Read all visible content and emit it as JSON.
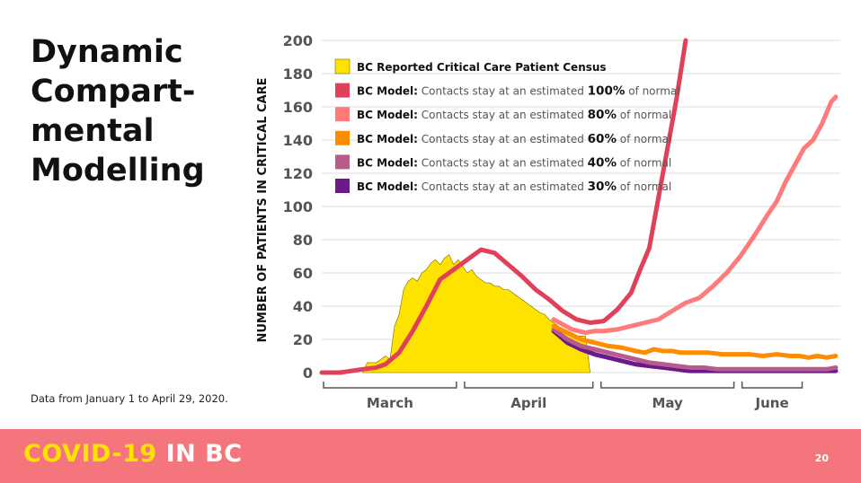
{
  "slide": {
    "title_lines": [
      "Dynamic",
      "Compart-",
      "mental",
      "Modelling"
    ],
    "note": "Data from January 1 to April 29, 2020.",
    "footer_part1": "COVID-19",
    "footer_part2": "IN BC",
    "page_number": "20",
    "colors": {
      "footer_bg": "#f5757c",
      "footer_accent": "#ffe300"
    }
  },
  "chart_data": {
    "type": "line",
    "ylabel": "NUMBER OF PATIENTS IN CRITICAL CARE",
    "ylim": [
      0,
      200
    ],
    "y_ticks": [
      0,
      20,
      40,
      60,
      80,
      100,
      120,
      140,
      160,
      180,
      200
    ],
    "x_unit": "day of year 2020 (Jan 1 = 1)",
    "xlim": [
      61,
      175
    ],
    "month_labels": [
      {
        "label": "March",
        "start": 61,
        "end": 91
      },
      {
        "label": "April",
        "start": 92,
        "end": 121
      },
      {
        "label": "May",
        "start": 122,
        "end": 152
      },
      {
        "label": "June",
        "start": 153,
        "end": 167
      }
    ],
    "grid": true,
    "legend_position": "top-left",
    "series": [
      {
        "name": "BC Reported Critical Care Patient Census",
        "legend_bold": "",
        "legend_pct": "",
        "legend_suffix": "",
        "kind": "area",
        "color": "#ffe300",
        "x": [
          70,
          71,
          72,
          73,
          74,
          75,
          76,
          77,
          78,
          79,
          80,
          81,
          82,
          83,
          84,
          85,
          86,
          87,
          88,
          89,
          90,
          91,
          92,
          93,
          94,
          95,
          96,
          97,
          98,
          99,
          100,
          101,
          102,
          103,
          104,
          105,
          106,
          107,
          108,
          109,
          110,
          111,
          112,
          113,
          114,
          115,
          116,
          117,
          118,
          119,
          120
        ],
        "y": [
          0,
          6,
          6,
          6,
          8,
          10,
          8,
          28,
          35,
          50,
          55,
          57,
          55,
          60,
          62,
          66,
          68,
          65,
          69,
          71,
          65,
          68,
          64,
          60,
          62,
          58,
          56,
          54,
          54,
          52,
          52,
          50,
          50,
          48,
          46,
          44,
          42,
          40,
          38,
          36,
          35,
          32,
          30,
          28,
          26,
          24,
          24,
          22,
          22,
          22,
          0
        ]
      },
      {
        "name": "BC Model: Contacts stay at an estimated 100% of normal",
        "legend_bold": "BC Model:",
        "legend_pct": "100%",
        "legend_suffix": " of normal",
        "kind": "line",
        "color": "#e0405a",
        "x": [
          61,
          65,
          70,
          73,
          75,
          78,
          81,
          84,
          87,
          90,
          93,
          96,
          99,
          102,
          105,
          108,
          111,
          114,
          117,
          120,
          123,
          126,
          129,
          131,
          133,
          135,
          137,
          139,
          141
        ],
        "y": [
          0,
          0,
          2,
          3,
          5,
          12,
          25,
          40,
          56,
          62,
          68,
          74,
          72,
          65,
          58,
          50,
          44,
          37,
          32,
          30,
          31,
          38,
          48,
          62,
          75,
          105,
          135,
          165,
          200
        ]
      },
      {
        "name": "BC Model: Contacts stay at an estimated 80% of normal",
        "legend_bold": "BC Model:",
        "legend_pct": "80%",
        "legend_suffix": " of normal",
        "kind": "line",
        "color": "#ff7b7b",
        "x": [
          112,
          116,
          119,
          121,
          123,
          126,
          129,
          132,
          135,
          138,
          141,
          144,
          147,
          150,
          153,
          156,
          159,
          161,
          163,
          165,
          167,
          169,
          171,
          173,
          174
        ],
        "y": [
          32,
          26,
          24,
          25,
          25,
          26,
          28,
          30,
          32,
          37,
          42,
          45,
          52,
          60,
          70,
          82,
          95,
          103,
          115,
          125,
          135,
          140,
          150,
          163,
          166
        ]
      },
      {
        "name": "BC Model: Contacts stay at an estimated 60% of normal",
        "legend_bold": "BC Model:",
        "legend_pct": "60%",
        "legend_suffix": " of normal",
        "kind": "line",
        "color": "#ff8c00",
        "x": [
          112,
          115,
          118,
          121,
          124,
          127,
          130,
          132,
          134,
          136,
          138,
          140,
          143,
          146,
          149,
          152,
          155,
          158,
          161,
          164,
          166,
          168,
          170,
          172,
          174
        ],
        "y": [
          28,
          24,
          20,
          18,
          16,
          15,
          13,
          12,
          14,
          13,
          13,
          12,
          12,
          12,
          11,
          11,
          11,
          10,
          11,
          10,
          10,
          9,
          10,
          9,
          10
        ]
      },
      {
        "name": "BC Model: Contacts stay at an estimated 40% of normal",
        "legend_bold": "BC Model:",
        "legend_pct": "40%",
        "legend_suffix": " of normal",
        "kind": "line",
        "color": "#b65b8b",
        "x": [
          112,
          115,
          118,
          121,
          124,
          127,
          130,
          133,
          136,
          139,
          142,
          145,
          148,
          151,
          154,
          157,
          160,
          163,
          166,
          169,
          172,
          174
        ],
        "y": [
          26,
          20,
          16,
          14,
          12,
          10,
          8,
          6,
          5,
          4,
          3,
          3,
          2,
          2,
          2,
          2,
          2,
          2,
          2,
          2,
          2,
          3
        ]
      },
      {
        "name": "BC Model: Contacts stay at an estimated 30% of normal",
        "legend_bold": "BC Model:",
        "legend_pct": "30%",
        "legend_suffix": " of normal",
        "kind": "line",
        "color": "#6a1a8a",
        "x": [
          112,
          115,
          118,
          121,
          124,
          127,
          130,
          133,
          136,
          139,
          142,
          145,
          148,
          151,
          154,
          157,
          160,
          163,
          166,
          169,
          172,
          174
        ],
        "y": [
          25,
          18,
          14,
          11,
          9,
          7,
          5,
          4,
          3,
          2,
          1,
          1,
          1,
          1,
          1,
          1,
          1,
          1,
          1,
          1,
          1,
          1
        ]
      }
    ]
  }
}
